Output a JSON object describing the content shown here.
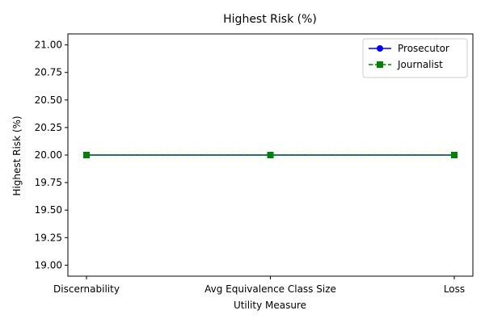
{
  "chart_data": {
    "type": "line",
    "title": "Highest Risk (%)",
    "xlabel": "Utility Measure",
    "ylabel": "Highest Risk (%)",
    "categories": [
      "Discernability",
      "Avg Equivalence Class Size",
      "Loss"
    ],
    "ylim": [
      18.9,
      21.1
    ],
    "yticks": [
      "19.00",
      "19.25",
      "19.50",
      "19.75",
      "20.00",
      "20.25",
      "20.50",
      "20.75",
      "21.00"
    ],
    "grid": false,
    "legend_position": "top-right",
    "series": [
      {
        "name": "Prosecutor",
        "values": [
          20,
          20,
          20
        ],
        "color": "#0000ff",
        "marker": "circle",
        "linestyle": "solid"
      },
      {
        "name": "Journalist",
        "values": [
          20,
          20,
          20
        ],
        "color": "#008000",
        "marker": "square",
        "linestyle": "dashed"
      }
    ]
  }
}
